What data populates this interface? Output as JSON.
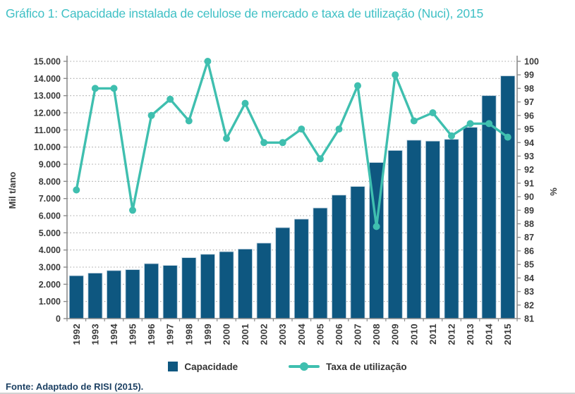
{
  "title": "Gráfico 1: Capacidade instalada de celulose de mercado e taxa de utilização (Nuci), 2015",
  "fonte": "Fonte: Adaptado de RISI (2015).",
  "colors": {
    "title": "#3FC0C5",
    "bar": "#0E5780",
    "bar_edge": "#B9CEDC",
    "line": "#3FBFAF",
    "grid": "#A8A8A8",
    "axis": "#8C8C8C",
    "tick_text": "#3A3A3A",
    "legend_text": "#333333",
    "fonte_text": "#1C4063"
  },
  "chart_data": {
    "type": "bar+line",
    "title": "Gráfico 1: Capacidade instalada de celulose de mercado e taxa de utilização (Nuci), 2015",
    "categories": [
      "1992",
      "1993",
      "1994",
      "1995",
      "1996",
      "1997",
      "1998",
      "1999",
      "2000",
      "2001",
      "2002",
      "2003",
      "2004",
      "2005",
      "2006",
      "2007",
      "2008",
      "2009",
      "2010",
      "2011",
      "2012",
      "2013",
      "2014",
      "2015"
    ],
    "series": [
      {
        "name": "Capacidade",
        "type": "bar",
        "axis": "left",
        "values": [
          2500,
          2650,
          2800,
          2850,
          3200,
          3100,
          3550,
          3750,
          3900,
          4050,
          4400,
          5300,
          5800,
          6450,
          7200,
          7700,
          9100,
          9800,
          10400,
          10350,
          10450,
          11150,
          13000,
          14150
        ]
      },
      {
        "name": "Taxa de utilização",
        "type": "line",
        "axis": "right",
        "values": [
          90.5,
          98,
          98,
          89,
          96,
          97.2,
          95.6,
          100,
          94.3,
          96.9,
          94,
          94,
          95,
          92.8,
          95,
          98.2,
          87.8,
          99,
          95.6,
          96.2,
          94.5,
          95.4,
          95.4,
          94.4
        ]
      }
    ],
    "left_axis": {
      "label": "Mil t/ano",
      "min": 0,
      "max": 15000,
      "step": 1000,
      "tick_labels": [
        "0",
        "1.000",
        "2.000",
        "3.000",
        "4.000",
        "5.000",
        "6.000",
        "7.000",
        "8.000",
        "9.000",
        "10.000",
        "11.000",
        "12.000",
        "13.000",
        "14.000",
        "15.000"
      ]
    },
    "right_axis": {
      "label": "%",
      "min": 81,
      "max": 100,
      "step": 1,
      "tick_labels": [
        "81",
        "82",
        "83",
        "84",
        "85",
        "86",
        "87",
        "88",
        "89",
        "90",
        "91",
        "92",
        "93",
        "94",
        "95",
        "96",
        "97",
        "98",
        "99",
        "100"
      ]
    },
    "grid": "horizontal-dotted",
    "legend_position": "bottom"
  }
}
